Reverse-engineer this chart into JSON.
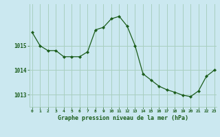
{
  "x": [
    0,
    1,
    2,
    3,
    4,
    5,
    6,
    7,
    8,
    9,
    10,
    11,
    12,
    13,
    14,
    15,
    16,
    17,
    18,
    19,
    20,
    21,
    22,
    23
  ],
  "y": [
    1015.55,
    1015.0,
    1014.8,
    1014.8,
    1014.55,
    1014.55,
    1014.55,
    1014.75,
    1015.65,
    1015.75,
    1016.1,
    1016.2,
    1015.8,
    1015.0,
    1013.85,
    1013.6,
    1013.35,
    1013.2,
    1013.1,
    1012.98,
    1012.92,
    1013.15,
    1013.75,
    1014.0
  ],
  "line_color": "#1a5c1a",
  "marker": "D",
  "marker_size": 2.2,
  "background_color": "#cbe8f0",
  "grid_color": "#a8cfc0",
  "axis_label_color": "#1a5c1a",
  "tick_label_color": "#1a5c1a",
  "xlabel": "Graphe pression niveau de la mer (hPa)",
  "ylim": [
    1012.5,
    1016.7
  ],
  "yticks": [
    1013,
    1014,
    1015
  ],
  "xticks": [
    0,
    1,
    2,
    3,
    4,
    5,
    6,
    7,
    8,
    9,
    10,
    11,
    12,
    13,
    14,
    15,
    16,
    17,
    18,
    19,
    20,
    21,
    22,
    23
  ],
  "xlim": [
    -0.3,
    23.3
  ]
}
